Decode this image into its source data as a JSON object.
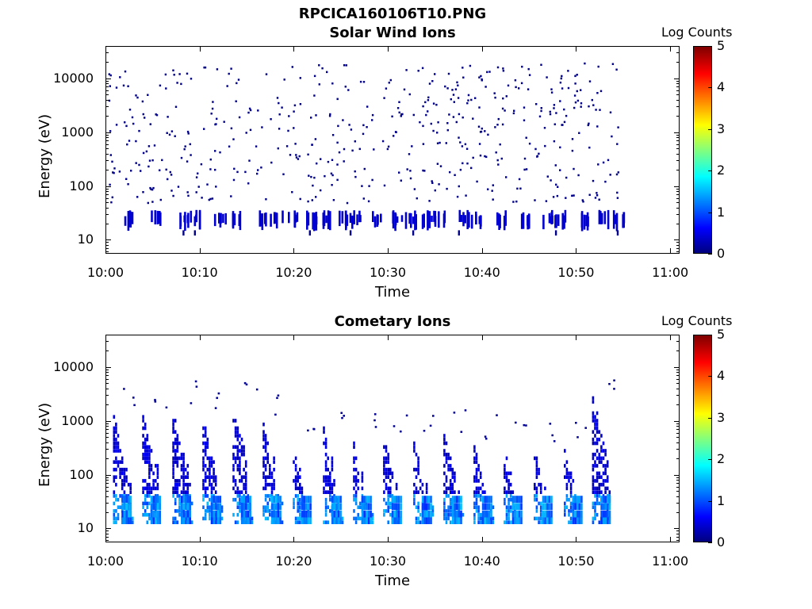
{
  "figure": {
    "file_title": "RPCICA160106T10.PNG"
  },
  "chart_data": [
    {
      "type": "heatmap",
      "title": "Solar Wind Ions",
      "xlabel": "Time",
      "ylabel": "Energy (eV)",
      "x_ticks": [
        "10:00",
        "10:10",
        "10:20",
        "10:30",
        "10:40",
        "10:50",
        "11:00"
      ],
      "x_range_minutes": [
        0,
        61
      ],
      "y_ticks": [
        "10000",
        "1000",
        "100",
        "10"
      ],
      "y_scale": "log",
      "y_range": [
        5.5,
        40000
      ],
      "colorbar": {
        "title": "Log Counts",
        "ticks": [
          "5",
          "4",
          "3",
          "2",
          "1",
          "0"
        ],
        "range": [
          0,
          5
        ],
        "colormap": "jet"
      },
      "data_extent_minutes": [
        0.3,
        54.6
      ],
      "pattern": "sparse scatter 50 eV to 20 keV; periodic low-energy bursts near 20-30 eV",
      "burst_times_minutes": [
        2,
        4.8,
        7.8,
        8.9,
        11.5,
        13.3,
        16.3,
        17.6,
        19.3,
        21.3,
        22.6,
        24.6,
        25.9,
        28.3,
        30.2,
        31.8,
        33.4,
        34.8,
        37.4,
        38.8,
        41.5,
        43.9,
        46.3,
        47.6,
        50.2,
        52.3,
        53.8
      ],
      "burst_energy_eV": [
        18,
        30
      ],
      "burst_log_counts": 0.4
    },
    {
      "type": "heatmap",
      "title": "Cometary Ions",
      "xlabel": "Time",
      "ylabel": "Energy (eV)",
      "x_ticks": [
        "10:00",
        "10:10",
        "10:20",
        "10:30",
        "10:40",
        "10:50",
        "11:00"
      ],
      "x_range_minutes": [
        0,
        61
      ],
      "y_ticks": [
        "10000",
        "1000",
        "100",
        "10"
      ],
      "y_scale": "log",
      "y_range": [
        5.5,
        40000
      ],
      "colorbar": {
        "title": "Log Counts",
        "ticks": [
          "5",
          "4",
          "3",
          "2",
          "1",
          "0"
        ],
        "range": [
          0,
          5
        ],
        "colormap": "jet"
      },
      "data_extent_minutes": [
        0.3,
        54.3
      ],
      "pattern": "periodic energy sweeps ~3.2 min apart; streaks from ~1000 eV down to ~12 eV, brightest (log counts ~1.5) near 12-35 eV",
      "sweep_start_minutes": [
        0.8,
        3.9,
        7.1,
        10.3,
        13.5,
        16.7,
        19.9,
        23.1,
        26.3,
        29.5,
        32.7,
        35.9,
        39.1,
        42.3,
        45.5,
        48.7,
        51.7
      ],
      "sweep_top_energy_eV": [
        1300,
        1200,
        1500,
        1200,
        1600,
        900,
        300,
        700,
        400,
        500,
        450,
        500,
        350,
        300,
        300,
        300,
        2500
      ],
      "sweep_peak_log_counts": 1.5
    }
  ]
}
